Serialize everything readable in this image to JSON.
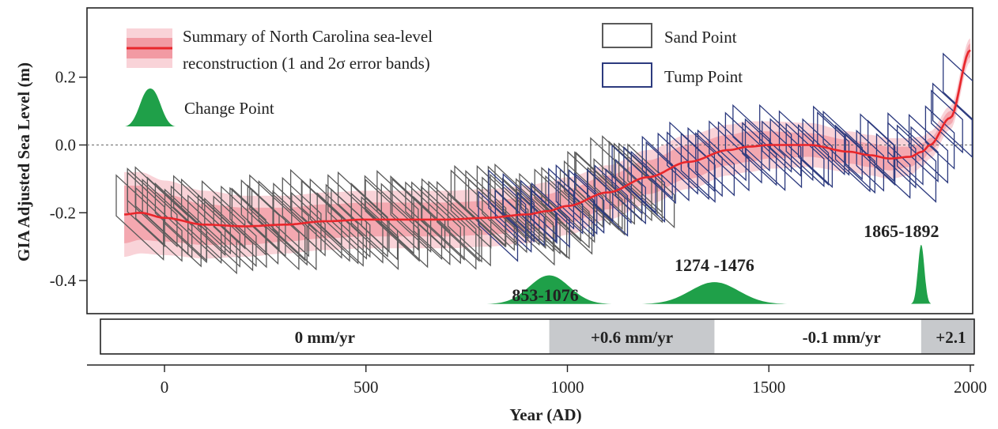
{
  "chart_data": {
    "type": "line",
    "xlabel": "Year (AD)",
    "ylabel": "GIA Adjusted Sea Level (m)",
    "xlim": [
      -190,
      2010
    ],
    "ylim": [
      -0.5,
      0.4
    ],
    "x_ticks": [
      0,
      500,
      1000,
      1500,
      2000
    ],
    "y_ticks": [
      0.2,
      0.0,
      -0.2,
      -0.4
    ],
    "x_tick_labels": [
      "0",
      "500",
      "1000",
      "1500",
      "2000"
    ],
    "y_tick_labels": [
      "0.2",
      "0.0",
      "-0.2",
      "-0.4"
    ],
    "zero_line": true,
    "legend": {
      "placement": "top-left",
      "reconstruction": "Summary of North Carolina sea-level reconstruction (1 and 2σ error bands)",
      "reconstruction_line1": "Summary of North Carolina sea-level",
      "reconstruction_line2": "reconstruction (1 and 2σ error bands)",
      "change_point": "Change Point",
      "sand_point": "Sand Point",
      "tump_point": "Tump Point"
    },
    "series": [
      {
        "name": "Summary of North Carolina sea-level reconstruction (1 and 2σ error bands)",
        "color": "#e8262b",
        "x": [
          -100,
          -60,
          0,
          100,
          200,
          300,
          400,
          500,
          600,
          700,
          800,
          900,
          950,
          1000,
          1100,
          1200,
          1300,
          1400,
          1450,
          1500,
          1600,
          1700,
          1750,
          1800,
          1850,
          1880,
          1900,
          1950,
          2000
        ],
        "y": [
          -0.205,
          -0.2,
          -0.215,
          -0.235,
          -0.24,
          -0.235,
          -0.225,
          -0.22,
          -0.22,
          -0.22,
          -0.215,
          -0.205,
          -0.195,
          -0.18,
          -0.14,
          -0.095,
          -0.05,
          -0.015,
          -0.005,
          0.0,
          0.0,
          -0.02,
          -0.03,
          -0.04,
          -0.035,
          -0.02,
          0.0,
          0.08,
          0.28
        ],
        "band1_halfwidth": [
          0.085,
          0.08,
          0.07,
          0.06,
          0.055,
          0.05,
          0.05,
          0.05,
          0.05,
          0.05,
          0.05,
          0.05,
          0.05,
          0.05,
          0.05,
          0.05,
          0.05,
          0.045,
          0.045,
          0.04,
          0.035,
          0.035,
          0.035,
          0.035,
          0.03,
          0.025,
          0.02,
          0.02,
          0.02
        ],
        "band2_halfwidth": [
          0.125,
          0.12,
          0.11,
          0.1,
          0.09,
          0.085,
          0.085,
          0.085,
          0.085,
          0.085,
          0.085,
          0.085,
          0.085,
          0.085,
          0.08,
          0.08,
          0.08,
          0.075,
          0.075,
          0.07,
          0.065,
          0.06,
          0.06,
          0.06,
          0.055,
          0.045,
          0.04,
          0.035,
          0.035
        ]
      }
    ],
    "sample_groups": [
      {
        "name": "Sand Point",
        "color": "#5a5a5a",
        "x_range": [
          -70,
          1210
        ],
        "age_half": 55,
        "height": 0.1,
        "count": 85,
        "residual": 0.035
      },
      {
        "name": "Tump Point",
        "color": "#2c3a7e",
        "x_range": [
          820,
          1990
        ],
        "age_half": 40,
        "height": 0.1,
        "count": 60,
        "residual": 0.03
      }
    ],
    "change_points": [
      {
        "label": "853-1076",
        "center": 955,
        "spread": 75,
        "peak": 0.085
      },
      {
        "label": "1274 -1476",
        "center": 1365,
        "spread": 90,
        "peak": 0.065
      },
      {
        "label": "1865-1892",
        "center": 1878,
        "spread": 12,
        "peak": 0.175
      }
    ],
    "rate_periods": [
      {
        "label": "0 mm/yr",
        "start": -160,
        "end": 955,
        "shaded": false
      },
      {
        "label": "+0.6 mm/yr",
        "start": 955,
        "end": 1365,
        "shaded": true
      },
      {
        "label": "-0.1 mm/yr",
        "start": 1365,
        "end": 1878,
        "shaded": false
      },
      {
        "label": "+2.1",
        "start": 1878,
        "end": 2010,
        "shaded": true
      }
    ],
    "colors": {
      "reconstruction": "#e8262b",
      "band_1sigma": "#f29aa3",
      "band_2sigma": "#f9d3d8",
      "change_point": "#1fa049",
      "sand_point": "#5a5a5a",
      "tump_point": "#2c3a7e",
      "period_shade": "#c7c9cc"
    }
  }
}
